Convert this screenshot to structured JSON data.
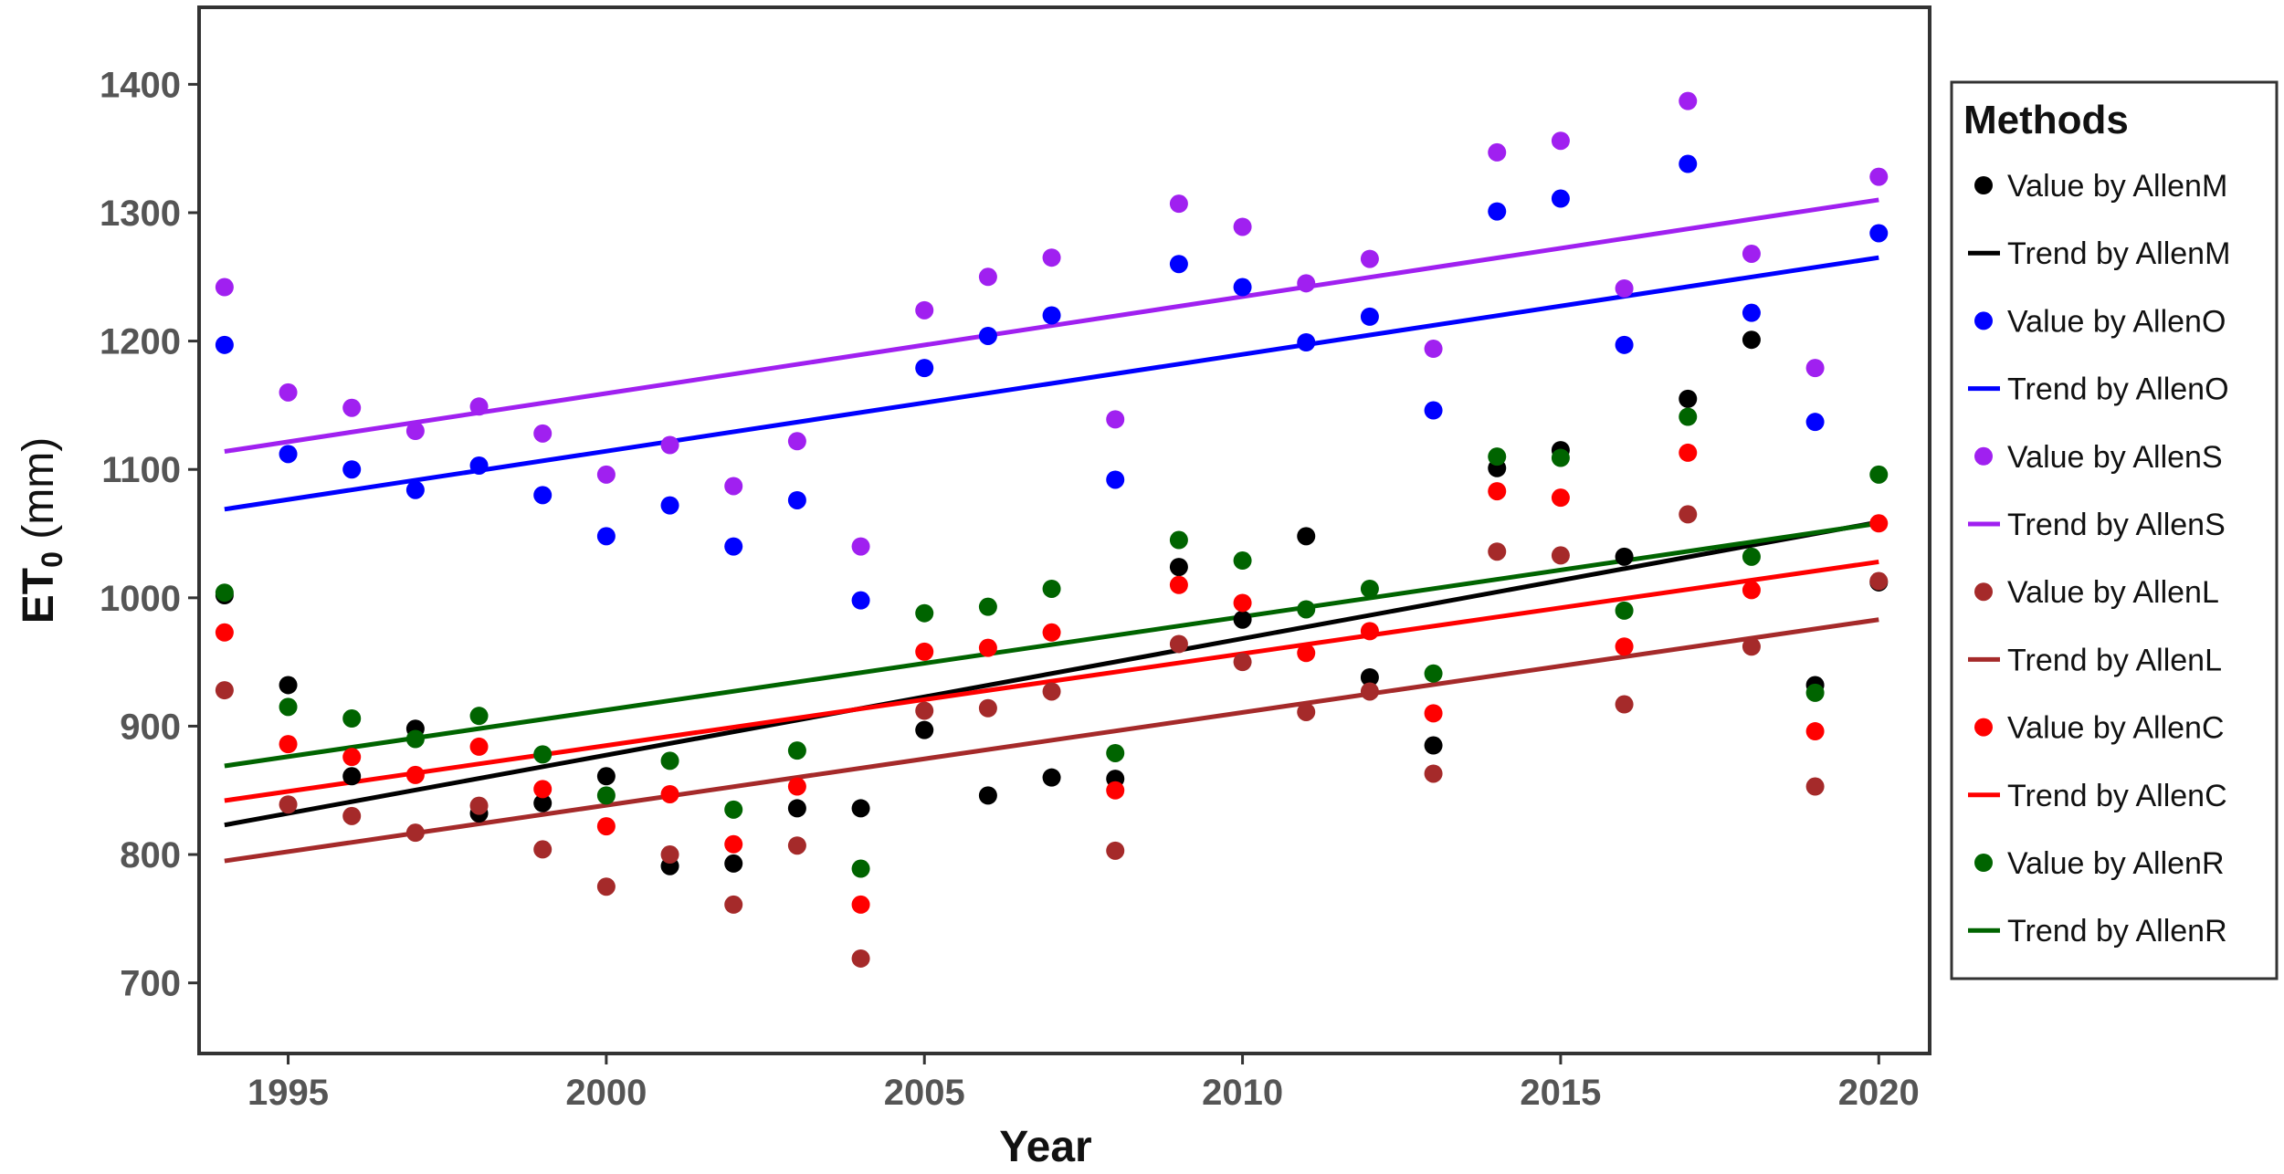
{
  "chart_data": {
    "type": "scatter",
    "title": "",
    "xlabel": "Year",
    "ylabel_main": "ET",
    "ylabel_sub": "0",
    "ylabel_unit": " (mm)",
    "xlim": [
      1993.6,
      2020.8
    ],
    "ylim": [
      645,
      1460
    ],
    "x_ticks": [
      1995,
      2000,
      2005,
      2010,
      2015,
      2020
    ],
    "y_ticks": [
      700,
      800,
      900,
      1000,
      1100,
      1200,
      1300,
      1400
    ],
    "grid": false,
    "legend_position": "right",
    "legend_title": "Methods",
    "x": [
      1994,
      1995,
      1996,
      1997,
      1998,
      1999,
      2000,
      2001,
      2002,
      2003,
      2004,
      2005,
      2006,
      2007,
      2008,
      2009,
      2010,
      2011,
      2012,
      2013,
      2014,
      2015,
      2016,
      2017,
      2018,
      2019,
      2020
    ],
    "series": [
      {
        "name": "AllenM",
        "color": "#000000",
        "values": [
          1002,
          932,
          861,
          898,
          832,
          840,
          861,
          791,
          793,
          836,
          836,
          897,
          846,
          860,
          859,
          1024,
          983,
          1048,
          938,
          885,
          1101,
          1115,
          1032,
          1155,
          1201,
          932,
          1012
        ],
        "trend": [
          823,
          1059
        ]
      },
      {
        "name": "AllenO",
        "color": "#0000ff",
        "values": [
          1197,
          1112,
          1100,
          1084,
          1103,
          1080,
          1048,
          1072,
          1040,
          1076,
          998,
          1179,
          1204,
          1220,
          1092,
          1260,
          1242,
          1199,
          1219,
          1146,
          1301,
          1311,
          1197,
          1338,
          1222,
          1137,
          1284
        ],
        "trend": [
          1069,
          1265
        ]
      },
      {
        "name": "AllenS",
        "color": "#a020f0",
        "values": [
          1242,
          1160,
          1148,
          1130,
          1149,
          1128,
          1096,
          1119,
          1087,
          1122,
          1040,
          1224,
          1250,
          1265,
          1139,
          1307,
          1289,
          1245,
          1264,
          1194,
          1347,
          1356,
          1241,
          1387,
          1268,
          1179,
          1328
        ],
        "trend": [
          1114,
          1310
        ]
      },
      {
        "name": "AllenL",
        "color": "#a52a2a",
        "values": [
          928,
          839,
          830,
          817,
          838,
          804,
          775,
          800,
          761,
          807,
          719,
          912,
          914,
          927,
          803,
          964,
          950,
          911,
          927,
          863,
          1036,
          1033,
          917,
          1065,
          962,
          853,
          1013
        ],
        "trend": [
          795,
          983
        ]
      },
      {
        "name": "AllenC",
        "color": "#ff0000",
        "values": [
          973,
          886,
          876,
          862,
          884,
          851,
          822,
          847,
          808,
          853,
          761,
          958,
          961,
          973,
          850,
          1010,
          996,
          957,
          974,
          910,
          1083,
          1078,
          962,
          1113,
          1006,
          896,
          1058
        ],
        "trend": [
          842,
          1028
        ]
      },
      {
        "name": "AllenR",
        "color": "#006400",
        "values": [
          1004,
          915,
          906,
          890,
          908,
          878,
          846,
          873,
          835,
          881,
          789,
          988,
          993,
          1007,
          879,
          1045,
          1029,
          991,
          1007,
          941,
          1110,
          1109,
          990,
          1141,
          1032,
          926,
          1096
        ],
        "trend": [
          869,
          1058
        ]
      }
    ],
    "legend_entries": [
      {
        "label": "Value by AllenM",
        "kind": "point",
        "color": "#000000"
      },
      {
        "label": "Trend by AllenM",
        "kind": "line",
        "color": "#000000"
      },
      {
        "label": "Value by AllenO",
        "kind": "point",
        "color": "#0000ff"
      },
      {
        "label": "Trend by AllenO",
        "kind": "line",
        "color": "#0000ff"
      },
      {
        "label": "Value by AllenS",
        "kind": "point",
        "color": "#a020f0"
      },
      {
        "label": "Trend by AllenS",
        "kind": "line",
        "color": "#a020f0"
      },
      {
        "label": "Value by AllenL",
        "kind": "point",
        "color": "#a52a2a"
      },
      {
        "label": "Trend by AllenL",
        "kind": "line",
        "color": "#a52a2a"
      },
      {
        "label": "Value by AllenC",
        "kind": "point",
        "color": "#ff0000"
      },
      {
        "label": "Trend by AllenC",
        "kind": "line",
        "color": "#ff0000"
      },
      {
        "label": "Value by AllenR",
        "kind": "point",
        "color": "#006400"
      },
      {
        "label": "Trend by AllenR",
        "kind": "line",
        "color": "#006400"
      }
    ]
  }
}
